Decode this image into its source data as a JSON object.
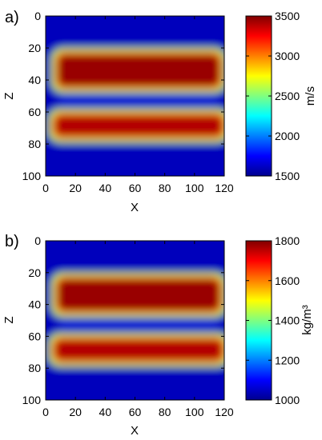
{
  "chart_data": [
    {
      "panel_label": "a)",
      "type": "heatmap",
      "xlabel": "X",
      "ylabel": "Z",
      "xlim": [
        0,
        120
      ],
      "ylim": [
        0,
        100
      ],
      "y_inverted": true,
      "x_ticks": [
        0,
        20,
        40,
        60,
        80,
        100,
        120
      ],
      "y_ticks": [
        0,
        20,
        40,
        60,
        80,
        100
      ],
      "colorbar": {
        "label": "m/s",
        "range": [
          1500,
          3500
        ],
        "ticks": [
          1500,
          2000,
          2500,
          3000,
          3500
        ],
        "colormap": "jet"
      },
      "model": {
        "background": 1600,
        "layers": [
          {
            "x_range": [
              7,
              118
            ],
            "z_range": [
              23,
              45
            ],
            "value": 3450
          },
          {
            "x_range": [
              7,
              118
            ],
            "z_range": [
              47,
              58
            ],
            "value": 1650
          },
          {
            "x_range": [
              5,
              120
            ],
            "z_range": [
              61,
              76
            ],
            "value": 3400
          }
        ]
      }
    },
    {
      "panel_label": "b)",
      "type": "heatmap",
      "xlabel": "X",
      "ylabel": "Z",
      "xlim": [
        0,
        120
      ],
      "ylim": [
        0,
        100
      ],
      "y_inverted": true,
      "x_ticks": [
        0,
        20,
        40,
        60,
        80,
        100,
        120
      ],
      "y_ticks": [
        0,
        20,
        40,
        60,
        80,
        100
      ],
      "colorbar": {
        "label": "kg/m³",
        "range": [
          1000,
          1800
        ],
        "ticks": [
          1000,
          1200,
          1400,
          1600,
          1800
        ],
        "colormap": "jet"
      },
      "model": {
        "background": 1040,
        "layers": [
          {
            "x_range": [
              7,
              118
            ],
            "z_range": [
              23,
              45
            ],
            "value": 1780
          },
          {
            "x_range": [
              7,
              118
            ],
            "z_range": [
              47,
              58
            ],
            "value": 1060
          },
          {
            "x_range": [
              5,
              120
            ],
            "z_range": [
              61,
              76
            ],
            "value": 1760
          }
        ]
      }
    }
  ]
}
